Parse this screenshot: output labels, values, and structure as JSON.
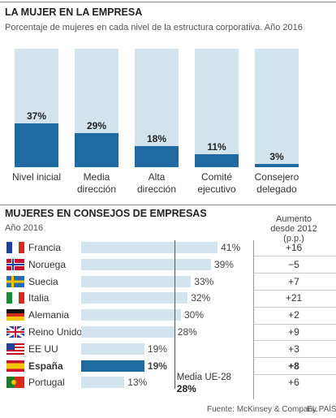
{
  "chart_data": [
    {
      "type": "bar",
      "title": "LA MUJER EN LA EMPRESA",
      "subtitle": "Porcentaje de mujeres en cada nivel de la estructura corporativa. Año 2016",
      "categories": [
        "Nivel inicial",
        "Media dirección",
        "Alta dirección",
        "Comité ejecutivo",
        "Consejero delegado"
      ],
      "values": [
        37,
        29,
        18,
        11,
        3
      ],
      "value_labels": [
        "37%",
        "29%",
        "18%",
        "11%",
        "3%"
      ],
      "color": "#1f6aa0",
      "track_color": "#d3e4ec",
      "ylim": [
        0,
        100
      ]
    },
    {
      "type": "hbar",
      "title": "MUJERES EN CONSEJOS DE EMPRESAS",
      "subtitle": "Año 2016",
      "categories": [
        "Francia",
        "Noruega",
        "Suecia",
        "Italia",
        "Alemania",
        "Reino Unido",
        "EE UU",
        "España",
        "Portugal"
      ],
      "values": [
        41,
        39,
        33,
        32,
        30,
        28,
        19,
        19,
        13
      ],
      "value_labels": [
        "41%",
        "39%",
        "33%",
        "32%",
        "30%",
        "28%",
        "19%",
        "19%",
        "13%"
      ],
      "colors": [
        "#d3e4ec",
        "#d3e4ec",
        "#d3e4ec",
        "#d3e4ec",
        "#d3e4ec",
        "#d3e4ec",
        "#d3e4ec",
        "#1f6aa0",
        "#d3e4ec"
      ],
      "highlight_color": "#1f6aa0",
      "xlim": [
        0,
        50
      ],
      "reference": {
        "label": "Media UE-28",
        "value": 28,
        "value_label": "28%"
      },
      "change": {
        "title": "Aumento desde 2012 (p.p.)",
        "values": [
          16,
          -5,
          7,
          21,
          2,
          9,
          3,
          8,
          6
        ],
        "value_labels": [
          "+16",
          "−5",
          "+7",
          "+21",
          "+2",
          "+9",
          "+3",
          "+8",
          "+6"
        ]
      },
      "source": "Fuente: McKinsey & Company.",
      "credit": "EL PAÍS"
    }
  ]
}
